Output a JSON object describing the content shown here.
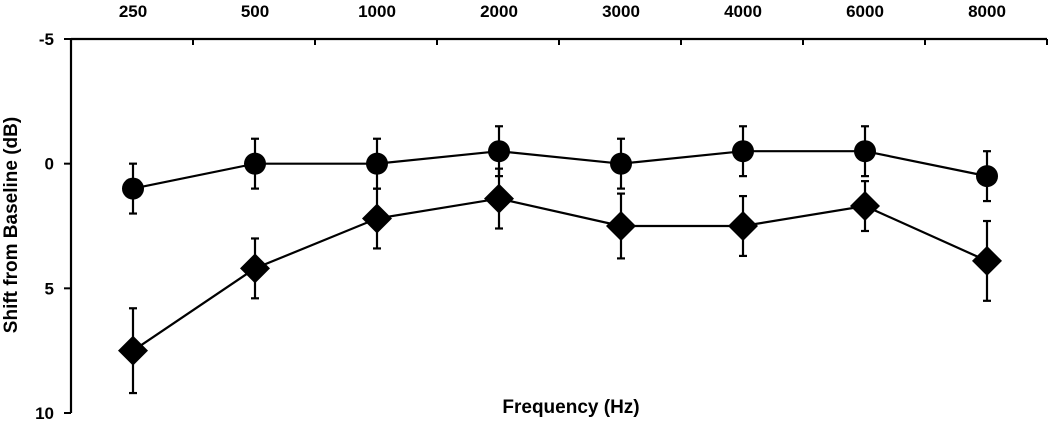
{
  "chart_data": {
    "type": "line",
    "title": "",
    "xlabel": "Frequency (Hz)",
    "ylabel": "Shift from Baseline (dB)",
    "x_axis_position": "top",
    "y_inverted": true,
    "ylim": [
      -5,
      10
    ],
    "yticks": [
      -5,
      0,
      5,
      10
    ],
    "categories": [
      "250",
      "500",
      "1000",
      "2000",
      "3000",
      "4000",
      "6000",
      "8000"
    ],
    "grid": false,
    "legend": "none",
    "series": [
      {
        "marker": "circle",
        "color": "#000000",
        "values": [
          1.0,
          0.0,
          0.0,
          -0.5,
          0.0,
          -0.5,
          -0.5,
          0.5
        ],
        "error": [
          1.0,
          1.0,
          1.0,
          1.0,
          1.0,
          1.0,
          1.0,
          1.0
        ]
      },
      {
        "marker": "diamond",
        "color": "#000000",
        "values": [
          7.5,
          4.2,
          2.2,
          1.4,
          2.5,
          2.5,
          1.7,
          3.9
        ],
        "error": [
          1.7,
          1.2,
          1.2,
          1.2,
          1.3,
          1.2,
          1.0,
          1.6
        ]
      }
    ]
  }
}
